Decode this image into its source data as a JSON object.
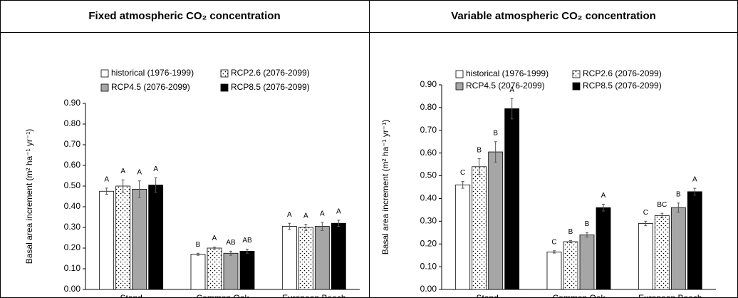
{
  "chart_data": [
    {
      "type": "bar",
      "title": "Fixed atmospheric CO₂ concentration",
      "y_label": "Basal area increment (m² ha⁻¹ yr⁻¹)",
      "categories": [
        "Stand",
        "Common Oak",
        "European Beech"
      ],
      "ylim": [
        0,
        0.9
      ],
      "yticks": [
        {
          "value": 0,
          "label": "0.00"
        },
        {
          "value": 0.1,
          "label": "0.10"
        },
        {
          "value": 0.2,
          "label": "0.20"
        },
        {
          "value": 0.3,
          "label": "0.30"
        },
        {
          "value": 0.4,
          "label": "0.40"
        },
        {
          "value": 0.5,
          "label": "0.50"
        },
        {
          "value": 0.6,
          "label": "0.60"
        },
        {
          "value": 0.7,
          "label": "0.70"
        },
        {
          "value": 0.8,
          "label": "0.80"
        },
        {
          "value": 0.9,
          "label": "0.90"
        }
      ],
      "series": [
        {
          "name": "historical (1976-1999)",
          "color": "#ffffff",
          "values": [
            0.475,
            0.17,
            0.305
          ],
          "errors": [
            0.015,
            0.005,
            0.015
          ],
          "letters": [
            "A",
            "B",
            "A"
          ]
        },
        {
          "name": "RCP2.6 (2076-2099)",
          "color": "#ffffff",
          "pattern": "dots",
          "values": [
            0.5,
            0.2,
            0.3
          ],
          "errors": [
            0.03,
            0.005,
            0.015
          ],
          "letters": [
            "A",
            "A",
            "A"
          ]
        },
        {
          "name": "RCP4.5 (2076-2099)",
          "color": "#a6a6a6",
          "values": [
            0.485,
            0.175,
            0.305
          ],
          "errors": [
            0.04,
            0.01,
            0.02
          ],
          "letters": [
            "A",
            "AB",
            "A"
          ]
        },
        {
          "name": "RCP8.5 (2076-2099)",
          "color": "#000000",
          "values": [
            0.505,
            0.185,
            0.32
          ],
          "errors": [
            0.035,
            0.01,
            0.015
          ],
          "letters": [
            "A",
            "AB",
            "A"
          ]
        }
      ]
    },
    {
      "type": "bar",
      "title": "Variable atmospheric CO₂ concentration",
      "y_label": "Basal area increment (m² ha⁻¹ yr⁻¹)",
      "categories": [
        "Stand",
        "Common Oak",
        "European Beech"
      ],
      "ylim": [
        0,
        0.9
      ],
      "yticks": [
        {
          "value": 0,
          "label": "0.00"
        },
        {
          "value": 0.1,
          "label": "0.10"
        },
        {
          "value": 0.2,
          "label": "0.20"
        },
        {
          "value": 0.3,
          "label": "0.30"
        },
        {
          "value": 0.4,
          "label": "0.40"
        },
        {
          "value": 0.5,
          "label": "0.50"
        },
        {
          "value": 0.6,
          "label": "0.60"
        },
        {
          "value": 0.7,
          "label": "0.70"
        },
        {
          "value": 0.8,
          "label": "0.80"
        },
        {
          "value": 0.9,
          "label": "0.90"
        }
      ],
      "series": [
        {
          "name": "historical (1976-1999)",
          "color": "#ffffff",
          "values": [
            0.46,
            0.165,
            0.29
          ],
          "errors": [
            0.015,
            0.005,
            0.01
          ],
          "letters": [
            "C",
            "C",
            "C"
          ]
        },
        {
          "name": "RCP2.6 (2076-2099)",
          "color": "#ffffff",
          "pattern": "dots",
          "values": [
            0.54,
            0.21,
            0.325
          ],
          "errors": [
            0.035,
            0.005,
            0.01
          ],
          "letters": [
            "B",
            "B",
            "BC"
          ]
        },
        {
          "name": "RCP4.5 (2076-2099)",
          "color": "#a6a6a6",
          "values": [
            0.605,
            0.24,
            0.36
          ],
          "errors": [
            0.045,
            0.01,
            0.02
          ],
          "letters": [
            "B",
            "B",
            "B"
          ]
        },
        {
          "name": "RCP8.5 (2076-2099)",
          "color": "#000000",
          "values": [
            0.795,
            0.36,
            0.43
          ],
          "errors": [
            0.045,
            0.015,
            0.015
          ],
          "letters": [
            "A",
            "A",
            "A"
          ]
        }
      ]
    }
  ]
}
